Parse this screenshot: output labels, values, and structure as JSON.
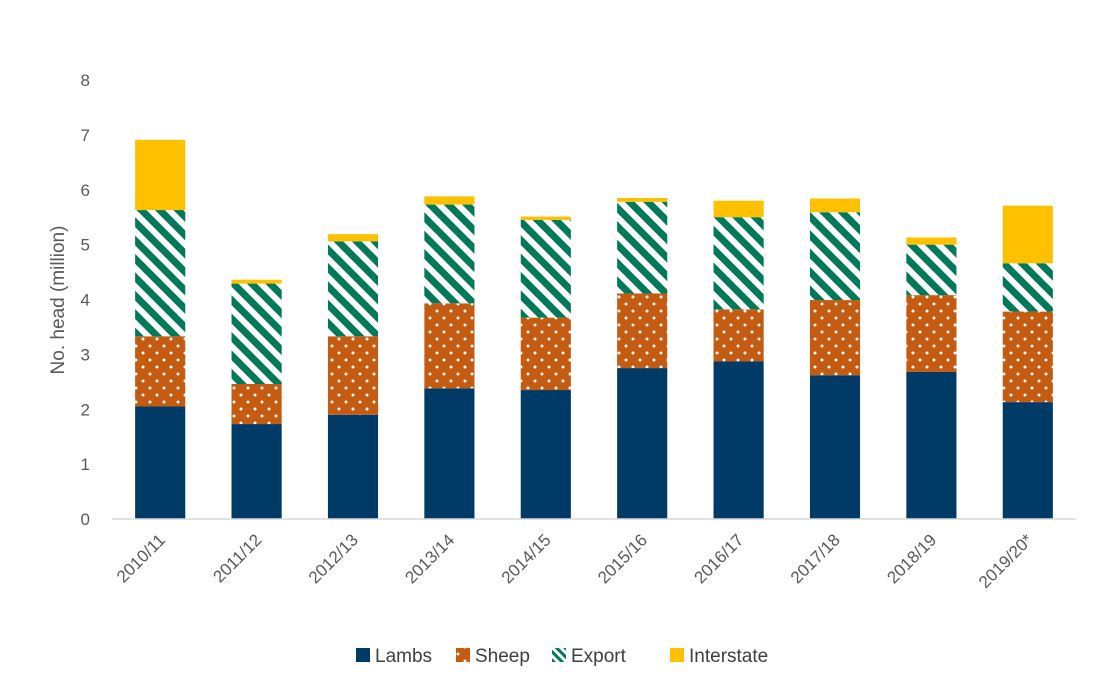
{
  "chart_data": {
    "type": "bar",
    "stacked": true,
    "title": "",
    "xlabel": "",
    "ylabel": "No. head (million)",
    "ylim": [
      0,
      8
    ],
    "yticks": [
      0,
      1,
      2,
      3,
      4,
      5,
      6,
      7,
      8
    ],
    "grid": false,
    "legend_position": "bottom",
    "categories": [
      "2010/11",
      "2011/12",
      "2012/13",
      "2013/14",
      "2014/15",
      "2015/16",
      "2016/17",
      "2017/18",
      "2018/19",
      "2019/20*"
    ],
    "series": [
      {
        "name": "Lambs",
        "color": "#003a66",
        "pattern": "solid",
        "values": [
          2.05,
          1.73,
          1.9,
          2.38,
          2.35,
          2.75,
          2.87,
          2.62,
          2.68,
          2.13
        ]
      },
      {
        "name": "Sheep",
        "color": "#c55a11",
        "pattern": "dots",
        "values": [
          1.28,
          0.73,
          1.43,
          1.55,
          1.32,
          1.36,
          0.95,
          1.37,
          1.4,
          1.65
        ]
      },
      {
        "name": "Export",
        "color": "#00795a",
        "pattern": "diagonal-stripes",
        "values": [
          2.3,
          1.83,
          1.73,
          1.8,
          1.78,
          1.67,
          1.68,
          1.6,
          0.92,
          0.88
        ]
      },
      {
        "name": "Interstate",
        "color": "#ffc000",
        "pattern": "solid",
        "values": [
          1.28,
          0.07,
          0.13,
          0.15,
          0.06,
          0.07,
          0.3,
          0.25,
          0.13,
          1.05
        ]
      }
    ]
  }
}
